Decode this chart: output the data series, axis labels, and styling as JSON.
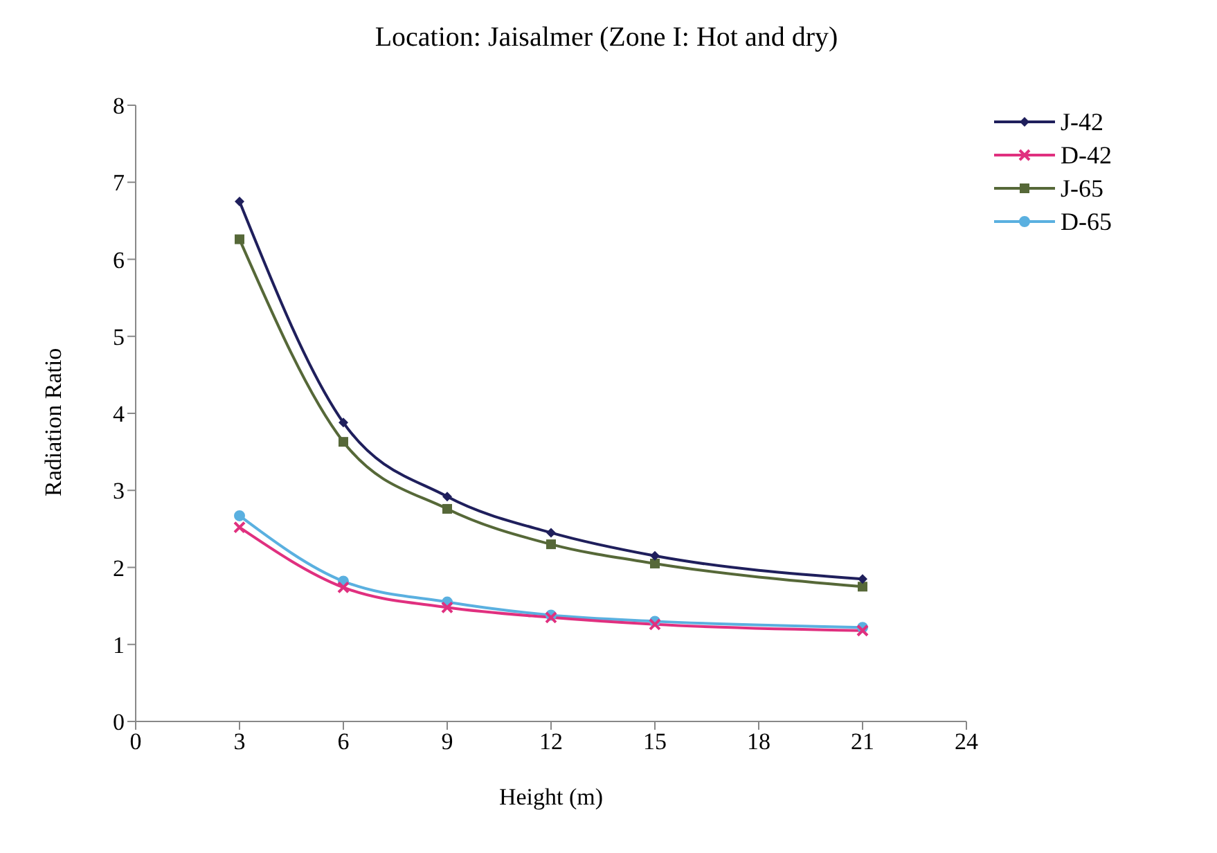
{
  "chart_data": {
    "type": "line",
    "title": "Location: Jaisalmer (Zone I: Hot and dry)",
    "xlabel": "Height (m)",
    "ylabel": "Radiation Ratio",
    "x": [
      3,
      6,
      9,
      12,
      15,
      21
    ],
    "series": [
      {
        "name": "J-42",
        "color": "#1f1f5c",
        "marker": "diamond",
        "values": [
          6.75,
          3.88,
          2.92,
          2.45,
          2.15,
          1.85
        ]
      },
      {
        "name": "D-42",
        "color": "#e0307f",
        "marker": "cross",
        "values": [
          2.52,
          1.74,
          1.48,
          1.35,
          1.26,
          1.18
        ]
      },
      {
        "name": "J-65",
        "color": "#566838",
        "marker": "square",
        "values": [
          6.26,
          3.63,
          2.76,
          2.3,
          2.05,
          1.75
        ]
      },
      {
        "name": "D-65",
        "color": "#5ab0e0",
        "marker": "circle",
        "values": [
          2.67,
          1.82,
          1.55,
          1.38,
          1.3,
          1.22
        ]
      }
    ],
    "xlim": [
      0,
      24
    ],
    "xticks": [
      0,
      3,
      6,
      9,
      12,
      15,
      18,
      21,
      24
    ],
    "ylim": [
      0,
      8
    ],
    "yticks": [
      0,
      1,
      2,
      3,
      4,
      5,
      6,
      7,
      8
    ],
    "grid": false,
    "legend": "top right",
    "line_style": "solid"
  }
}
